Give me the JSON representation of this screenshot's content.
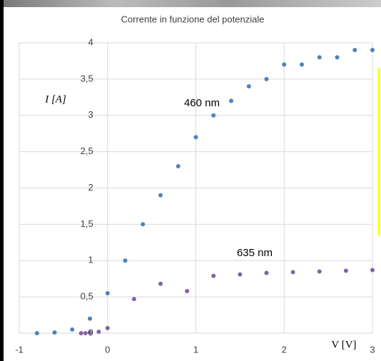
{
  "chart_data": {
    "type": "scatter",
    "title": "Corrente in funzione del potenziale",
    "x_label": "V [V]",
    "y_label": "I [A]",
    "xlim": [
      -1,
      3
    ],
    "xticks": [
      -1,
      0,
      1,
      2,
      3
    ],
    "ylim": [
      0,
      4
    ],
    "yticks": [
      0,
      {
        "value": 0.5,
        "label": "0,5"
      },
      1,
      {
        "value": 1.5,
        "label": "1,5"
      },
      2,
      {
        "value": 2.5,
        "label": "2,5"
      },
      3,
      {
        "value": 3.5,
        "label": "3,5"
      },
      4
    ],
    "grid": true,
    "series": [
      {
        "name": "460 nm",
        "color": "#4f81bd",
        "x": [
          -0.8,
          -0.6,
          -0.4,
          -0.2,
          0,
          0.2,
          0.4,
          0.6,
          0.8,
          1,
          1.2,
          1.4,
          1.6,
          1.8,
          2,
          2.2,
          2.4,
          2.6,
          2.8,
          3
        ],
        "values": [
          0,
          0.01,
          0.05,
          0.2,
          0.55,
          1,
          1.5,
          1.9,
          2.3,
          2.7,
          3,
          3.2,
          3.4,
          3.5,
          3.7,
          3.7,
          3.8,
          3.8,
          3.9,
          3.9
        ]
      },
      {
        "name": "635 nm",
        "color": "#8064a2",
        "x": [
          -0.3,
          -0.25,
          -0.2,
          -0.1,
          0,
          0.3,
          0.6,
          0.9,
          1.2,
          1.5,
          1.8,
          2.1,
          2.4,
          2.7,
          3
        ],
        "values": [
          0,
          0,
          0.01,
          0.02,
          0.07,
          0.47,
          0.68,
          0.58,
          0.79,
          0.81,
          0.83,
          0.84,
          0.85,
          0.86,
          0.87
        ]
      }
    ]
  }
}
